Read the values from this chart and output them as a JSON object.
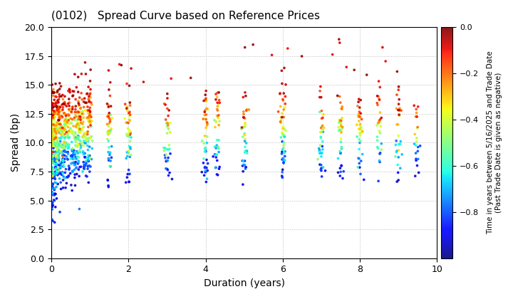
{
  "title": "(0102)   Spread Curve based on Reference Prices",
  "xlabel": "Duration (years)",
  "ylabel": "Spread (bp)",
  "colorbar_label": "Time in years between 5/16/2025 and Trade Date\n(Past Trade Date is given as negative)",
  "colorbar_ticks": [
    0.0,
    -0.2,
    -0.4,
    -0.6,
    -0.8
  ],
  "xlim": [
    0,
    10
  ],
  "ylim": [
    0.0,
    20.0
  ],
  "yticks": [
    0.0,
    2.5,
    5.0,
    7.5,
    10.0,
    12.5,
    15.0,
    17.5,
    20.0
  ],
  "xticks": [
    0,
    2,
    4,
    6,
    8,
    10
  ],
  "cmap": "jet",
  "vmin": -1.0,
  "vmax": 0.0,
  "dot_size": 7,
  "background_color": "#ffffff",
  "grid_color": "#bbbbbb",
  "seed": 42
}
